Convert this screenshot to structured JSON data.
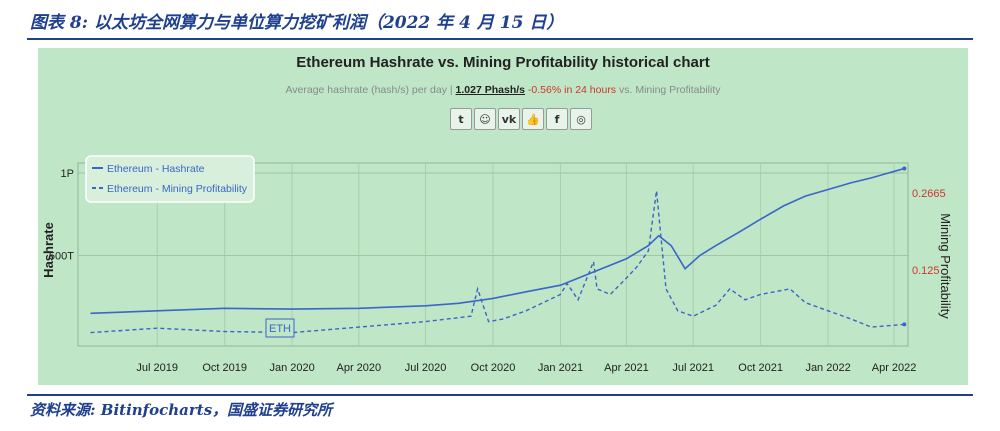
{
  "figure_title": "图表 8: 以太坊全网算力与单位算力挖矿利润（2022 年 4 月 15 日）",
  "source": "资料来源: Bitinfocharts，国盛证券研究所",
  "share_icons": [
    {
      "name": "twitter-icon",
      "glyph": "t"
    },
    {
      "name": "reddit-icon",
      "glyph": "☺"
    },
    {
      "name": "vk-icon",
      "glyph": "vk"
    },
    {
      "name": "like-icon",
      "glyph": "👍"
    },
    {
      "name": "facebook-icon",
      "glyph": "f"
    },
    {
      "name": "weibo-icon",
      "glyph": "◎"
    }
  ],
  "subtitle": {
    "prefix": "Average hashrate (hash/s) per day |",
    "rate": "1.027 Phash/s",
    "change": "-0.56% in 24 hours",
    "suffix": "vs. Mining Profitability"
  },
  "badge": "ETH",
  "colors": {
    "hashrate": "#3a66c9",
    "profitability": "#3a66c9",
    "right_axis": "#d0352f",
    "panel": "#bfe6c6"
  },
  "chart_data": {
    "type": "line",
    "title": "Ethereum Hashrate vs. Mining Profitability historical chart",
    "ylabel": "Hashrate",
    "y2label": "Mining Profitability",
    "legend": "top-left",
    "x_ticks": [
      "Jul 2019",
      "Oct 2019",
      "Jan 2020",
      "Apr 2020",
      "Jul 2020",
      "Oct 2020",
      "Jan 2021",
      "Apr 2021",
      "Jul 2021",
      "Oct 2021",
      "Jan 2022",
      "Apr 2022"
    ],
    "y_ticks": [
      "500T",
      "1P"
    ],
    "y2_ticks": [
      "0.125",
      "0.2665"
    ],
    "series": [
      {
        "name": "Ethereum - Hashrate",
        "axis": "left",
        "x": [
          "2019-04-01",
          "2019-07-01",
          "2019-10-01",
          "2020-01-01",
          "2020-04-01",
          "2020-07-01",
          "2020-08-15",
          "2020-10-01",
          "2020-11-15",
          "2021-01-01",
          "2021-02-15",
          "2021-04-01",
          "2021-05-01",
          "2021-05-15",
          "2021-06-01",
          "2021-06-20",
          "2021-07-10",
          "2021-08-01",
          "2021-09-01",
          "2021-10-01",
          "2021-11-01",
          "2021-12-01",
          "2022-01-01",
          "2022-02-01",
          "2022-03-01",
          "2022-04-15"
        ],
        "values": [
          150,
          165,
          180,
          175,
          180,
          195,
          210,
          240,
          280,
          320,
          400,
          480,
          560,
          620,
          560,
          420,
          500,
          560,
          640,
          720,
          800,
          860,
          900,
          940,
          970,
          1027
        ]
      },
      {
        "name": "Ethereum - Mining Profitability",
        "axis": "right",
        "x": [
          "2019-04-01",
          "2019-07-01",
          "2019-10-01",
          "2020-01-01",
          "2020-04-01",
          "2020-07-01",
          "2020-09-01",
          "2020-09-10",
          "2020-09-25",
          "2020-10-15",
          "2020-11-15",
          "2021-01-01",
          "2021-01-10",
          "2021-01-25",
          "2021-02-15",
          "2021-02-20",
          "2021-03-10",
          "2021-04-01",
          "2021-04-15",
          "2021-05-01",
          "2021-05-12",
          "2021-05-25",
          "2021-06-10",
          "2021-07-01",
          "2021-08-01",
          "2021-08-20",
          "2021-09-10",
          "2021-10-01",
          "2021-11-10",
          "2021-12-01",
          "2022-01-01",
          "2022-02-01",
          "2022-03-01",
          "2022-04-15"
        ],
        "values": [
          0.01,
          0.018,
          0.012,
          0.01,
          0.02,
          0.03,
          0.04,
          0.09,
          0.03,
          0.035,
          0.05,
          0.08,
          0.1,
          0.07,
          0.14,
          0.09,
          0.08,
          0.11,
          0.13,
          0.16,
          0.27,
          0.09,
          0.05,
          0.04,
          0.06,
          0.09,
          0.07,
          0.08,
          0.09,
          0.065,
          0.05,
          0.035,
          0.02,
          0.025
        ]
      }
    ]
  }
}
